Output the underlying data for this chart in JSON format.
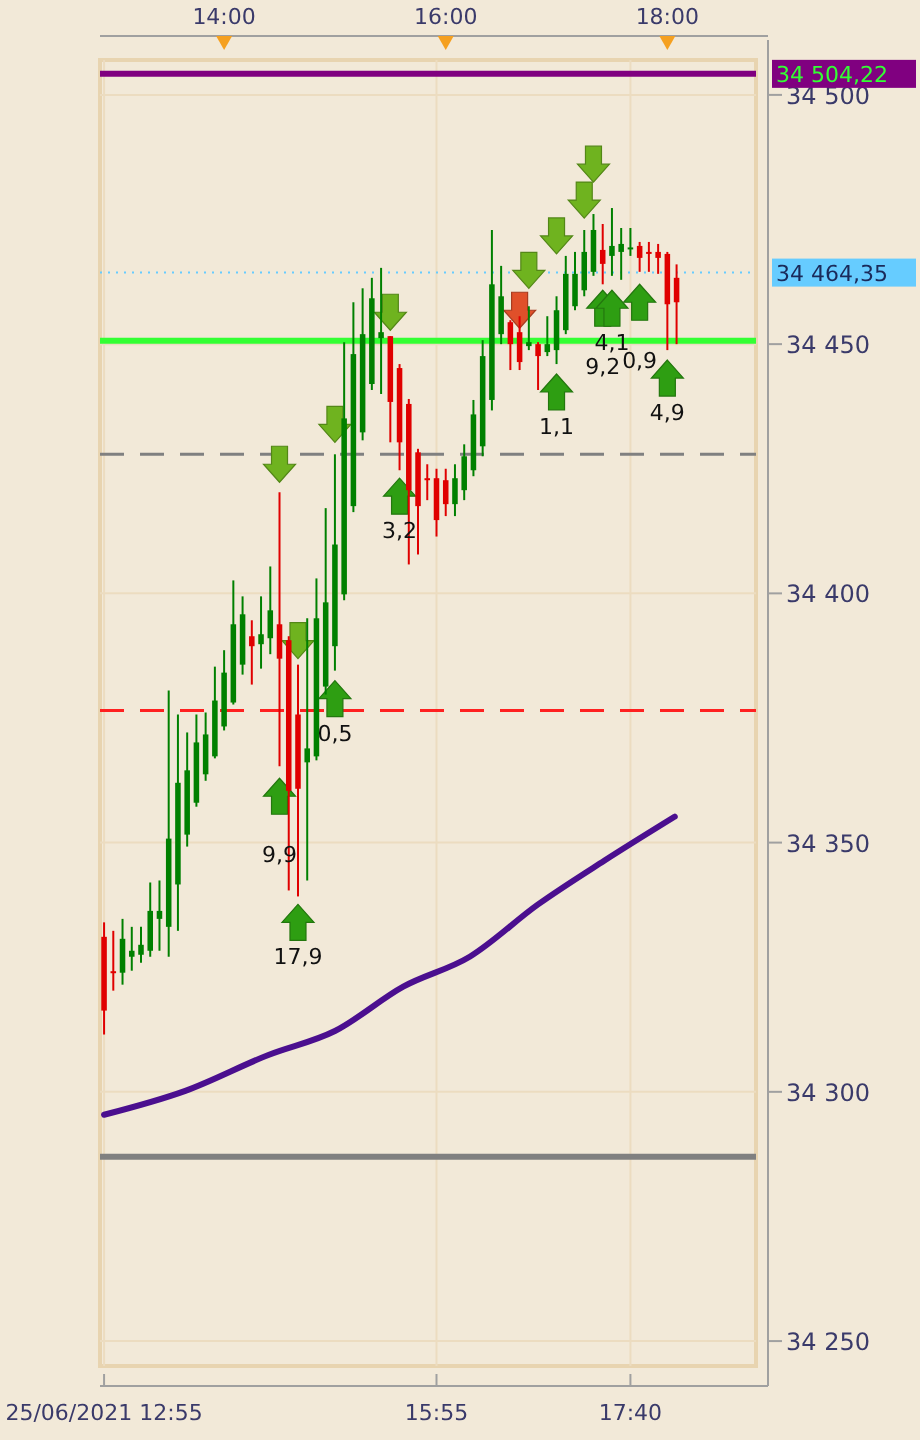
{
  "chart_data": {
    "type": "candlestick",
    "x": [
      12.9167,
      13.0,
      13.0833,
      13.1667,
      13.25,
      13.3333,
      13.4167,
      13.5,
      13.5833,
      13.6667,
      13.75,
      13.8333,
      13.9167,
      14.0,
      14.0833,
      14.1667,
      14.25,
      14.3333,
      14.4167,
      14.5,
      14.5833,
      14.6667,
      14.75,
      14.8333,
      14.9167,
      15.0,
      15.0833,
      15.1667,
      15.25,
      15.3333,
      15.4167,
      15.5,
      15.5833,
      15.6667,
      15.75,
      15.8333,
      15.9167,
      16.0,
      16.0833,
      16.1667,
      16.25,
      16.3333,
      16.4167,
      16.5,
      16.5833,
      16.6667,
      16.75,
      16.8333,
      16.9167,
      17.0,
      17.0833,
      17.1667,
      17.25,
      17.3333,
      17.4167,
      17.5,
      17.5833,
      17.6667,
      17.75,
      17.8333,
      17.9167,
      18.0,
      18.0833
    ],
    "ohlc": [
      [
        34331.1,
        34334,
        34311.5,
        34316.3
      ],
      [
        34324.2,
        34332.3,
        34320.3,
        34323.8
      ],
      [
        34323.9,
        34334.7,
        34321.5,
        34330.7
      ],
      [
        34327.1,
        34333.1,
        34324.3,
        34328.3
      ],
      [
        34327.5,
        34333.1,
        34325.9,
        34329.5
      ],
      [
        34328.3,
        34342,
        34327.1,
        34336.3
      ],
      [
        34334.7,
        34342.4,
        34328.3,
        34336.3
      ],
      [
        34333.1,
        34380.5,
        34327.1,
        34350.8
      ],
      [
        34341.6,
        34375.7,
        34332.3,
        34362
      ],
      [
        34351.6,
        34372.1,
        34349.2,
        34364.5
      ],
      [
        34358,
        34375.7,
        34357.2,
        34370.1
      ],
      [
        34363.7,
        34376.1,
        34362.4,
        34371.7
      ],
      [
        34367.3,
        34385.3,
        34366.9,
        34378.5
      ],
      [
        34373.3,
        34388.6,
        34372.5,
        34384.1
      ],
      [
        34378.1,
        34402.6,
        34377.7,
        34393.8
      ],
      [
        34385.7,
        34399.4,
        34383.7,
        34395.8
      ],
      [
        34391.4,
        34394.6,
        34381.7,
        34389.4
      ],
      [
        34389.8,
        34399.4,
        34384.9,
        34391.8
      ],
      [
        34391,
        34405.4,
        34387.8,
        34396.6
      ],
      [
        34393.8,
        34420.3,
        34365.3,
        34386.9
      ],
      [
        34390.6,
        34391.4,
        34340.4,
        34360.4
      ],
      [
        34375.7,
        34385.7,
        34339.2,
        34360.8
      ],
      [
        34366.1,
        34395,
        34342.4,
        34368.9
      ],
      [
        34367.3,
        34403,
        34366.5,
        34395
      ],
      [
        34381.3,
        34417.1,
        34379.7,
        34398.2
      ],
      [
        34389.4,
        34427.9,
        34384.5,
        34409.8
      ],
      [
        34399.8,
        34450.4,
        34398.6,
        34435.1
      ],
      [
        34417.5,
        34458.4,
        34416.3,
        34448
      ],
      [
        34432.3,
        34461.2,
        34430.7,
        34452
      ],
      [
        34442,
        34463.3,
        34440.8,
        34459.2
      ],
      [
        34451.2,
        34465.3,
        34440,
        34452.4
      ],
      [
        34451.6,
        34451.6,
        34430.3,
        34438.4
      ],
      [
        34445.2,
        34446,
        34424.7,
        34430.3
      ],
      [
        34438,
        34439,
        34405.8,
        34420.7
      ],
      [
        34428.3,
        34429,
        34407.8,
        34417.5
      ],
      [
        34423.1,
        34425.9,
        34418.7,
        34422.7
      ],
      [
        34423.1,
        34425,
        34411.4,
        34414.7
      ],
      [
        34422.7,
        34425,
        34415.5,
        34417.9
      ],
      [
        34417.9,
        34425.9,
        34415.5,
        34423.1
      ],
      [
        34420.7,
        34429.9,
        34418.7,
        34427.5
      ],
      [
        34424.7,
        34438.8,
        34423.5,
        34435.9
      ],
      [
        34429.5,
        34450.8,
        34427.5,
        34447.6
      ],
      [
        34438.8,
        34472.9,
        34436.7,
        34462
      ],
      [
        34452,
        34465.7,
        34450,
        34459.6
      ],
      [
        34454.4,
        34454.8,
        34444.8,
        34450
      ],
      [
        34452.4,
        34455.6,
        34444.8,
        34446.4
      ],
      [
        34449.6,
        34457.6,
        34448.8,
        34450.4
      ],
      [
        34450,
        34450.4,
        34440.8,
        34447.6
      ],
      [
        34448.4,
        34455.6,
        34447.6,
        34450
      ],
      [
        34448.8,
        34459.6,
        34446,
        34456.8
      ],
      [
        34452.8,
        34467.7,
        34452,
        34464.1
      ],
      [
        34457.6,
        34468.5,
        34456.8,
        34464.1
      ],
      [
        34460.8,
        34472.9,
        34459.6,
        34468.5
      ],
      [
        34464.5,
        34476.1,
        34463.7,
        34472.9
      ],
      [
        34468.9,
        34474.1,
        34462,
        34466.1
      ],
      [
        34467.7,
        34477.3,
        34463.7,
        34469.7
      ],
      [
        34468.5,
        34473.3,
        34462.9,
        34470.1
      ],
      [
        34469.2,
        34473.3,
        34467.7,
        34469.4
      ],
      [
        34469.7,
        34470.5,
        34464.5,
        34467.3
      ],
      [
        34468.5,
        34470.5,
        34464.5,
        34468.1
      ],
      [
        34468.5,
        34470.1,
        34464.1,
        34467.3
      ],
      [
        34468.1,
        34468.5,
        34448.8,
        34458
      ],
      [
        34463.3,
        34466,
        34450,
        34458.4
      ]
    ],
    "series": [
      {
        "type": "line",
        "color": "#4b0f8f",
        "x": [
          12.9167,
          13.65,
          14.4,
          15.0,
          15.6167,
          16.2167,
          16.8333,
          17.4333,
          18.0667
        ],
        "values": [
          34295.4,
          34300.2,
          34307.4,
          34312.2,
          34321.1,
          34327.1,
          34337.6,
          34346.4,
          34355.2
        ]
      },
      {
        "type": "scatter",
        "color": "#6fb31f",
        "x": [
          14.5,
          14.6667,
          15.0,
          15.5,
          16.75,
          17.0,
          17.25,
          17.3333
        ],
        "values": [
          34425.9,
          34390.5,
          34433.9,
          34456.4,
          34464.8,
          34471.7,
          34478.9,
          34486.1
        ]
      },
      {
        "type": "scatter",
        "color": "#e0502a",
        "x": [
          16.6667
        ],
        "values": [
          34456.8
        ]
      },
      {
        "type": "scatter",
        "color": "#2e9e12",
        "x": [
          14.6667,
          14.5,
          15.0,
          15.5833,
          17.0,
          17.4167,
          17.5,
          17.75,
          18.0
        ],
        "values": [
          34334.0,
          34359.3,
          34378.9,
          34419.5,
          34440.4,
          34457.2,
          34457.2,
          34458.4,
          34443.2
        ]
      }
    ],
    "annotations": [
      {
        "text": "17,9",
        "x": 14.6667,
        "y": 34334.0
      },
      {
        "text": "9,9",
        "x": 14.5,
        "y": 34359.3
      },
      {
        "text": "0,5",
        "x": 15.0,
        "y": 34378.9
      },
      {
        "text": "3,2",
        "x": 15.5833,
        "y": 34419.5
      },
      {
        "text": "1,1",
        "x": 17.0,
        "y": 34440.4
      },
      {
        "text": "9,2",
        "x": 17.4167,
        "y": 34457.2
      },
      {
        "text": "4,1",
        "x": 17.5,
        "y": 34457.2
      },
      {
        "text": "0,9",
        "x": 17.75,
        "y": 34458.4
      },
      {
        "text": "4,9",
        "x": 18.0,
        "y": 34443.2
      }
    ],
    "ref_lines": [
      {
        "axis": "y",
        "value": 34504.22,
        "label": "34 504,22",
        "color": "#800080"
      },
      {
        "axis": "y",
        "value": 34464.35,
        "label": "34 464,35",
        "color": "#66ccff",
        "line_style": "dotted"
      },
      {
        "axis": "y",
        "value": 34450.7,
        "color": "#33ff33"
      },
      {
        "axis": "y",
        "value": 34427.9,
        "color": "#808080",
        "line_style": "dashed"
      },
      {
        "axis": "y",
        "value": 34376.5,
        "color": "#ff2020",
        "line_style": "dashed"
      },
      {
        "axis": "y",
        "value": 34287,
        "color": "#808080"
      }
    ],
    "xlim": [
      12.88,
      18.8
    ],
    "xticks": [
      {
        "value": 12.9167,
        "label": "25/06/2021 12:55"
      },
      {
        "value": 15.9167,
        "label": "15:55"
      },
      {
        "value": 17.6667,
        "label": "17:40"
      }
    ],
    "x2lim": [
      12.88,
      18.8
    ],
    "x2ticks": [
      {
        "value": 14,
        "label": "14:00"
      },
      {
        "value": 16,
        "label": "16:00"
      },
      {
        "value": 18,
        "label": "18:00"
      }
    ],
    "ylim": [
      34245,
      34507
    ],
    "yticks": [
      {
        "value": 34250,
        "label": "34 250"
      },
      {
        "value": 34300,
        "label": "34 300"
      },
      {
        "value": 34350,
        "label": "34 350"
      },
      {
        "value": 34400,
        "label": "34 400"
      },
      {
        "value": 34450,
        "label": "34 450"
      },
      {
        "value": 34500,
        "label": "34 500"
      }
    ],
    "grid": true
  }
}
